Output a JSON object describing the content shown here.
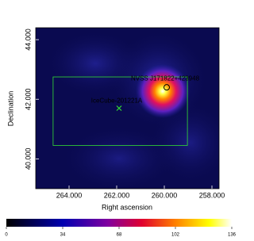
{
  "chart_data": {
    "type": "heatmap",
    "xlabel": "Right ascension",
    "ylabel": "Declination",
    "xlim": [
      265.4,
      257.7
    ],
    "ylim": [
      39.0,
      44.4
    ],
    "xticks": [
      {
        "value": 264,
        "label": "264.000"
      },
      {
        "value": 262,
        "label": "262.000"
      },
      {
        "value": 260,
        "label": "260.000"
      },
      {
        "value": 258,
        "label": "258.000"
      }
    ],
    "yticks": [
      {
        "value": 40,
        "label": "40.000"
      },
      {
        "value": 42,
        "label": "42.000"
      },
      {
        "value": 44,
        "label": "44.000"
      }
    ],
    "colorbar": {
      "lim": [
        0,
        136
      ],
      "ticks": [
        0,
        34,
        68,
        102,
        136
      ]
    },
    "region": {
      "ra": [
        264.67,
        259.03
      ],
      "dec": [
        40.45,
        42.75
      ],
      "color": "#33dd33"
    },
    "sources": [
      {
        "name": "NVSS J171822+423948",
        "ra": 259.9,
        "dec": 42.4,
        "color": "#c080ff"
      },
      {
        "name": "IceCube-201221A",
        "ra": 261.9,
        "dec": 41.7,
        "color": "#33dd33"
      }
    ]
  }
}
